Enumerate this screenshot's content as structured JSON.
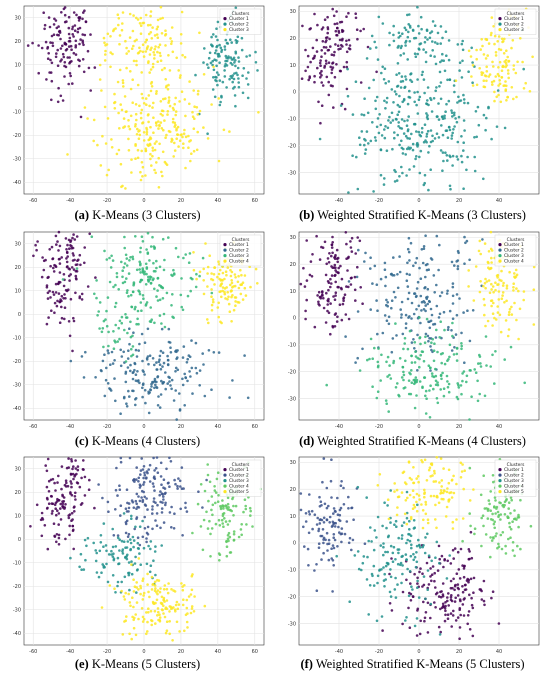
{
  "colors": {
    "k3": [
      "#440154",
      "#21918c",
      "#fde725"
    ],
    "k4": [
      "#440154",
      "#31688e",
      "#35b779",
      "#fde725"
    ],
    "k5": [
      "#440154",
      "#3b528b",
      "#21918c",
      "#5ec962",
      "#fde725"
    ]
  },
  "chart_data": [
    {
      "id": "a",
      "type": "scatter",
      "caption": {
        "label": "(a)",
        "text": "K-Means (3 Clusters)"
      },
      "legend": {
        "title": "Clusters",
        "placement": "top-right",
        "entries": [
          "Cluster 1",
          "Cluster 2",
          "Cluster 3"
        ]
      },
      "xlim": [
        -65,
        65
      ],
      "ylim": [
        -45,
        35
      ],
      "grid": true,
      "xticks": [
        -60,
        -40,
        -20,
        0,
        20,
        40,
        60
      ],
      "yticks": [
        -40,
        -30,
        -20,
        -10,
        0,
        10,
        20,
        30
      ],
      "series": [
        {
          "cluster": 1,
          "clouds": [
            {
              "cx": -45,
              "cy": 15,
              "sx": 7,
              "sy": 10,
              "n": 110
            },
            {
              "cx": -38,
              "cy": 28,
              "sx": 4,
              "sy": 4,
              "n": 30
            }
          ]
        },
        {
          "cluster": 2,
          "clouds": [
            {
              "cx": 45,
              "cy": 12,
              "sx": 7,
              "sy": 9,
              "n": 130
            }
          ]
        },
        {
          "cluster": 3,
          "clouds": [
            {
              "cx": 5,
              "cy": -15,
              "sx": 17,
              "sy": 13,
              "n": 260
            },
            {
              "cx": 0,
              "cy": 20,
              "sx": 12,
              "sy": 8,
              "n": 120
            }
          ]
        }
      ]
    },
    {
      "id": "b",
      "type": "scatter",
      "caption": {
        "label": "(b)",
        "text": "Weighted Stratified K-Means (3 Clusters)"
      },
      "legend": {
        "title": "Clusters",
        "placement": "top-right",
        "entries": [
          "Cluster 1",
          "Cluster 2",
          "Cluster 3"
        ]
      },
      "xlim": [
        -60,
        60
      ],
      "ylim": [
        -38,
        32
      ],
      "grid": true,
      "xticks": [
        -40,
        -20,
        0,
        20,
        40
      ],
      "yticks": [
        -30,
        -20,
        -10,
        0,
        10,
        20,
        30
      ],
      "series": [
        {
          "cluster": 1,
          "clouds": [
            {
              "cx": -45,
              "cy": 12,
              "sx": 7,
              "sy": 10,
              "n": 110
            },
            {
              "cx": -38,
              "cy": 24,
              "sx": 4,
              "sy": 4,
              "n": 25
            }
          ]
        },
        {
          "cluster": 2,
          "clouds": [
            {
              "cx": 2,
              "cy": -10,
              "sx": 17,
              "sy": 13,
              "n": 330
            },
            {
              "cx": 0,
              "cy": 20,
              "sx": 10,
              "sy": 7,
              "n": 80
            }
          ]
        },
        {
          "cluster": 3,
          "clouds": [
            {
              "cx": 40,
              "cy": 12,
              "sx": 7,
              "sy": 9,
              "n": 120
            }
          ]
        }
      ]
    },
    {
      "id": "c",
      "type": "scatter",
      "caption": {
        "label": "(c)",
        "text": "K-Means (4 Clusters)"
      },
      "legend": {
        "title": "Clusters",
        "placement": "top-right",
        "entries": [
          "Cluster 1",
          "Cluster 2",
          "Cluster 3",
          "Cluster 4"
        ]
      },
      "xlim": [
        -65,
        65
      ],
      "ylim": [
        -45,
        35
      ],
      "grid": true,
      "xticks": [
        -60,
        -40,
        -20,
        0,
        20,
        40,
        60
      ],
      "yticks": [
        -40,
        -30,
        -20,
        -10,
        0,
        10,
        20,
        30
      ],
      "series": [
        {
          "cluster": 1,
          "clouds": [
            {
              "cx": -45,
              "cy": 15,
              "sx": 7,
              "sy": 10,
              "n": 110
            },
            {
              "cx": -38,
              "cy": 28,
              "sx": 4,
              "sy": 4,
              "n": 25
            }
          ]
        },
        {
          "cluster": 2,
          "clouds": [
            {
              "cx": 5,
              "cy": -25,
              "sx": 15,
              "sy": 8,
              "n": 200
            }
          ]
        },
        {
          "cluster": 3,
          "clouds": [
            {
              "cx": 0,
              "cy": 15,
              "sx": 13,
              "sy": 10,
              "n": 190
            },
            {
              "cx": -15,
              "cy": -5,
              "sx": 6,
              "sy": 6,
              "n": 30
            }
          ]
        },
        {
          "cluster": 4,
          "clouds": [
            {
              "cx": 45,
              "cy": 12,
              "sx": 7,
              "sy": 9,
              "n": 120
            }
          ]
        }
      ]
    },
    {
      "id": "d",
      "type": "scatter",
      "caption": {
        "label": "(d)",
        "text": "Weighted Stratified K-Means (4 Clusters)"
      },
      "legend": {
        "title": "Clusters",
        "placement": "top-right",
        "entries": [
          "Cluster 1",
          "Cluster 2",
          "Cluster 3",
          "Cluster 4"
        ]
      },
      "xlim": [
        -60,
        60
      ],
      "ylim": [
        -38,
        32
      ],
      "grid": true,
      "xticks": [
        -40,
        -20,
        0,
        20,
        40
      ],
      "yticks": [
        -30,
        -20,
        -10,
        0,
        10,
        20,
        30
      ],
      "series": [
        {
          "cluster": 1,
          "clouds": [
            {
              "cx": -45,
              "cy": 12,
              "sx": 7,
              "sy": 10,
              "n": 110
            },
            {
              "cx": -38,
              "cy": 24,
              "sx": 4,
              "sy": 4,
              "n": 25
            }
          ]
        },
        {
          "cluster": 2,
          "clouds": [
            {
              "cx": -2,
              "cy": 8,
              "sx": 14,
              "sy": 13,
              "n": 210
            }
          ]
        },
        {
          "cluster": 3,
          "clouds": [
            {
              "cx": 5,
              "cy": -20,
              "sx": 15,
              "sy": 8,
              "n": 190
            }
          ]
        },
        {
          "cluster": 4,
          "clouds": [
            {
              "cx": 40,
              "cy": 12,
              "sx": 7,
              "sy": 9,
              "n": 120
            }
          ]
        }
      ]
    },
    {
      "id": "e",
      "type": "scatter",
      "caption": {
        "label": "(e)",
        "text": "K-Means (5 Clusters)"
      },
      "legend": {
        "title": "Clusters",
        "placement": "top-right",
        "entries": [
          "Cluster 1",
          "Cluster 2",
          "Cluster 3",
          "Cluster 4",
          "Cluster 5"
        ]
      },
      "xlim": [
        -65,
        65
      ],
      "ylim": [
        -45,
        35
      ],
      "grid": true,
      "xticks": [
        -60,
        -40,
        -20,
        0,
        20,
        40,
        60
      ],
      "yticks": [
        -40,
        -30,
        -20,
        -10,
        0,
        10,
        20,
        30
      ],
      "series": [
        {
          "cluster": 1,
          "clouds": [
            {
              "cx": -45,
              "cy": 15,
              "sx": 7,
              "sy": 10,
              "n": 110
            },
            {
              "cx": -38,
              "cy": 28,
              "sx": 4,
              "sy": 4,
              "n": 25
            }
          ]
        },
        {
          "cluster": 2,
          "clouds": [
            {
              "cx": 2,
              "cy": 18,
              "sx": 11,
              "sy": 9,
              "n": 170
            }
          ]
        },
        {
          "cluster": 3,
          "clouds": [
            {
              "cx": -12,
              "cy": -8,
              "sx": 10,
              "sy": 7,
              "n": 110
            }
          ]
        },
        {
          "cluster": 4,
          "clouds": [
            {
              "cx": 45,
              "cy": 12,
              "sx": 7,
              "sy": 9,
              "n": 120
            }
          ]
        },
        {
          "cluster": 5,
          "clouds": [
            {
              "cx": 8,
              "cy": -27,
              "sx": 13,
              "sy": 7,
              "n": 160
            }
          ]
        }
      ]
    },
    {
      "id": "f",
      "type": "scatter",
      "caption": {
        "label": "(f)",
        "text": "Weighted Stratified K-Means (5 Clusters)"
      },
      "legend": {
        "title": "Clusters",
        "placement": "top-right",
        "entries": [
          "Cluster 1",
          "Cluster 2",
          "Cluster 3",
          "Cluster 4",
          "Cluster 5"
        ]
      },
      "xlim": [
        -60,
        60
      ],
      "ylim": [
        -38,
        32
      ],
      "grid": true,
      "xticks": [
        -40,
        -20,
        0,
        20,
        40
      ],
      "yticks": [
        -30,
        -20,
        -10,
        0,
        10,
        20,
        30
      ],
      "series": [
        {
          "cluster": 1,
          "clouds": [
            {
              "cx": 12,
              "cy": -18,
              "sx": 12,
              "sy": 8,
              "n": 180
            }
          ]
        },
        {
          "cluster": 2,
          "clouds": [
            {
              "cx": -45,
              "cy": 8,
              "sx": 7,
              "sy": 10,
              "n": 120
            }
          ]
        },
        {
          "cluster": 3,
          "clouds": [
            {
              "cx": -12,
              "cy": -5,
              "sx": 10,
              "sy": 10,
              "n": 150
            }
          ]
        },
        {
          "cluster": 4,
          "clouds": [
            {
              "cx": 40,
              "cy": 12,
              "sx": 7,
              "sy": 9,
              "n": 120
            }
          ]
        },
        {
          "cluster": 5,
          "clouds": [
            {
              "cx": 5,
              "cy": 20,
              "sx": 10,
              "sy": 8,
              "n": 130
            }
          ]
        }
      ]
    }
  ]
}
